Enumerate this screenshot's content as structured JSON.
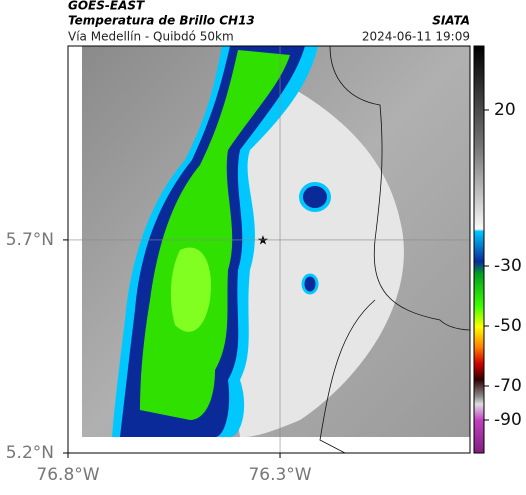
{
  "header": {
    "product": "GOES-EAST",
    "title": "Temperatura de Brillo CH13",
    "agency": "SIATA",
    "subtitle": "Vía Medellín - Quibdó 50km",
    "timestamp": "2024-06-11 19:09"
  },
  "map": {
    "xlim": [
      -76.8,
      -75.852
    ],
    "ylim": [
      5.2,
      6.155
    ],
    "xticks": [
      {
        "value": -76.8,
        "label": "76.8°W"
      },
      {
        "value": -76.3,
        "label": "76.3°W"
      }
    ],
    "yticks": [
      {
        "value": 5.2,
        "label": "5.2°N"
      },
      {
        "value": 5.7,
        "label": "5.7°N"
      }
    ]
  },
  "colorbar": {
    "ticks": [
      20,
      -30,
      -50,
      -70,
      -90
    ]
  }
}
